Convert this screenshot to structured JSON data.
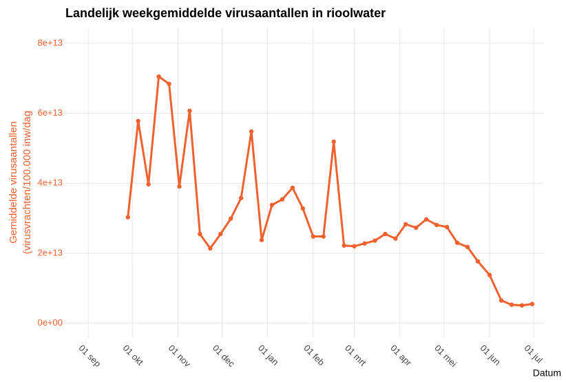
{
  "chart_data": {
    "type": "line",
    "title": "Landelijk weekgemiddelde virusaantallen in rioolwater",
    "xlabel": "Datum",
    "ylabel": [
      "Gemiddelde virusaantallen",
      "(virusvrachten/100.000 inw/dag"
    ],
    "grid": true,
    "xlim": [
      -15.5,
      310
    ],
    "xticks": [
      {
        "value": 0,
        "label": "01 sep"
      },
      {
        "value": 30,
        "label": "01 okt"
      },
      {
        "value": 61,
        "label": "01 nov"
      },
      {
        "value": 91,
        "label": "01 dec"
      },
      {
        "value": 122,
        "label": "01 jan"
      },
      {
        "value": 153,
        "label": "01 feb"
      },
      {
        "value": 181,
        "label": "01 mrt"
      },
      {
        "value": 212,
        "label": "01 apr"
      },
      {
        "value": 242,
        "label": "01 mei"
      },
      {
        "value": 273,
        "label": "01 jun"
      },
      {
        "value": 303,
        "label": "01 jul"
      }
    ],
    "ylim": [
      -4000000000000.0,
      84500000000000.0
    ],
    "yticks": [
      {
        "value": 0,
        "label": "0e+00"
      },
      {
        "value": 20000000000000.0,
        "label": "2e+13"
      },
      {
        "value": 40000000000000.0,
        "label": "4e+13"
      },
      {
        "value": 60000000000000.0,
        "label": "6e+13"
      },
      {
        "value": 80000000000000.0,
        "label": "8e+13"
      }
    ],
    "x": [
      27,
      34,
      41,
      48,
      55,
      62,
      69,
      76,
      83,
      90,
      97,
      104,
      111,
      118,
      125,
      132,
      139,
      146,
      153,
      160,
      167,
      174,
      181,
      188,
      195,
      202,
      209,
      216,
      223,
      230,
      237,
      244,
      251,
      258,
      265,
      273,
      281,
      288,
      295,
      302
    ],
    "series": [
      {
        "color": "#f0612e",
        "values": [
          30300000000000.0,
          57800000000000.0,
          39700000000000.0,
          70500000000000.0,
          68400000000000.0,
          39100000000000.0,
          60700000000000.0,
          25500000000000.0,
          21400000000000.0,
          25500000000000.0,
          29900000000000.0,
          35800000000000.0,
          54800000000000.0,
          23800000000000.0,
          33800000000000.0,
          35400000000000.0,
          38700000000000.0,
          32800000000000.0,
          24800000000000.0,
          24800000000000.0,
          51900000000000.0,
          22200000000000.0,
          22000000000000.0,
          22800000000000.0,
          23600000000000.0,
          25500000000000.0,
          24200000000000.0,
          28300000000000.0,
          27300000000000.0,
          29700000000000.0,
          28100000000000.0,
          27500000000000.0,
          23000000000000.0,
          21800000000000.0,
          17700000000000.0,
          13800000000000.0,
          6500000000000.0,
          5300000000000.0,
          5100000000000.0,
          5500000000000.0
        ]
      }
    ]
  }
}
